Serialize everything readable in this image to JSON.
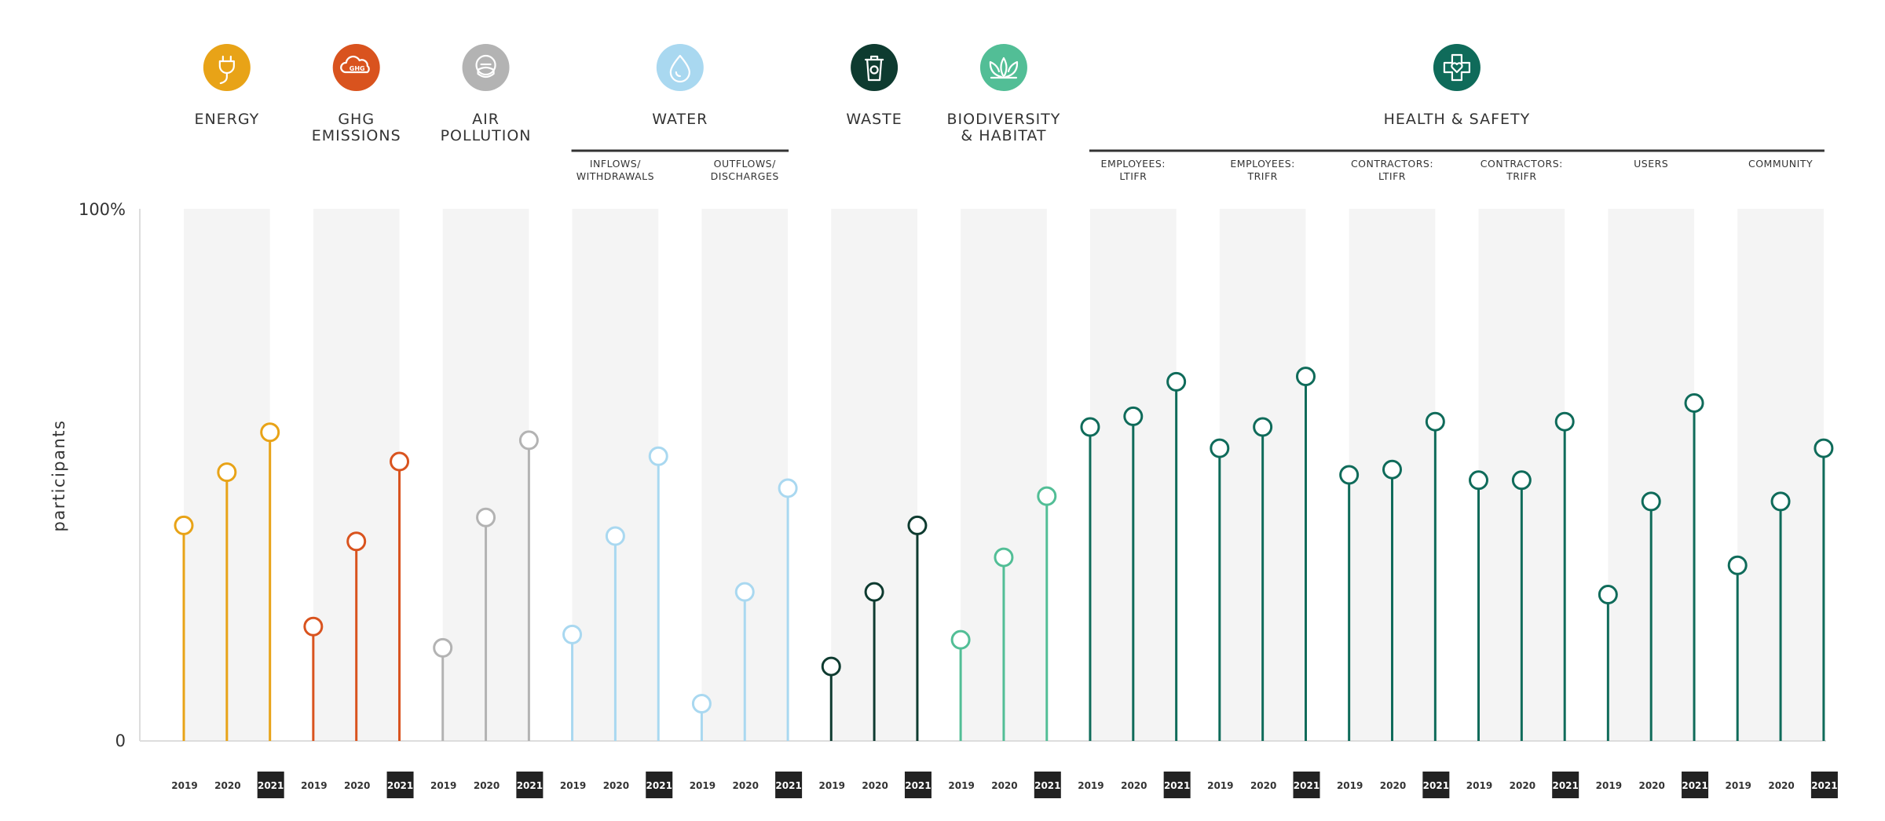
{
  "chart_data": {
    "type": "lollipop",
    "ylabel": "participants",
    "y_tick_labels": [
      "100%",
      "0"
    ],
    "ylim": [
      0,
      100
    ],
    "years": [
      "2019",
      "2020",
      "2021"
    ],
    "highlight_year": "2021",
    "groups": [
      {
        "label": [
          "ENERGY"
        ],
        "icon": "energy-plug-icon",
        "color": "#E8A317",
        "subcategories": [
          {
            "label": [],
            "values": [
              40.5,
              50.5,
              58
            ]
          }
        ]
      },
      {
        "label": [
          "GHG",
          "EMISSIONS"
        ],
        "icon": "ghg-cloud-icon",
        "color": "#D9531E",
        "subcategories": [
          {
            "label": [],
            "values": [
              21.5,
              37.5,
              52.5
            ]
          }
        ]
      },
      {
        "label": [
          "AIR",
          "POLLUTION"
        ],
        "icon": "air-mask-icon",
        "color": "#B3B3B3",
        "subcategories": [
          {
            "label": [],
            "values": [
              17.5,
              42,
              56.5
            ]
          }
        ]
      },
      {
        "label": [
          "WATER"
        ],
        "icon": "water-drop-icon",
        "color": "#A9D8F0",
        "subcategories": [
          {
            "label": [
              "INFLOWS/",
              "WITHDRAWALS"
            ],
            "values": [
              20,
              38.5,
              53.5
            ]
          },
          {
            "label": [
              "OUTFLOWS/",
              "DISCHARGES"
            ],
            "values": [
              7,
              28,
              47.5
            ]
          }
        ]
      },
      {
        "label": [
          "WASTE"
        ],
        "icon": "waste-bin-icon",
        "color": "#0E3B30",
        "subcategories": [
          {
            "label": [],
            "values": [
              14,
              28,
              40.5
            ]
          }
        ]
      },
      {
        "label": [
          "BIODIVERSITY",
          "& HABITAT"
        ],
        "icon": "biodiversity-leaf-icon",
        "color": "#52BE96",
        "subcategories": [
          {
            "label": [],
            "values": [
              19,
              34.5,
              46
            ]
          }
        ]
      },
      {
        "label": [
          "HEALTH & SAFETY"
        ],
        "icon": "health-cross-icon",
        "color": "#0F6B5A",
        "subcategories": [
          {
            "label": [
              "EMPLOYEES:",
              "LTIFR"
            ],
            "values": [
              59,
              61,
              67.5
            ]
          },
          {
            "label": [
              "EMPLOYEES:",
              "TRIFR"
            ],
            "values": [
              55,
              59,
              68.5
            ]
          },
          {
            "label": [
              "CONTRACTORS:",
              "LTIFR"
            ],
            "values": [
              50,
              51,
              60
            ]
          },
          {
            "label": [
              "CONTRACTORS:",
              "TRIFR"
            ],
            "values": [
              49,
              49,
              60
            ]
          },
          {
            "label": [
              "USERS"
            ],
            "values": [
              27.5,
              45,
              63.5
            ]
          },
          {
            "label": [
              "COMMUNITY"
            ],
            "values": [
              33,
              45,
              55
            ]
          }
        ]
      }
    ]
  }
}
